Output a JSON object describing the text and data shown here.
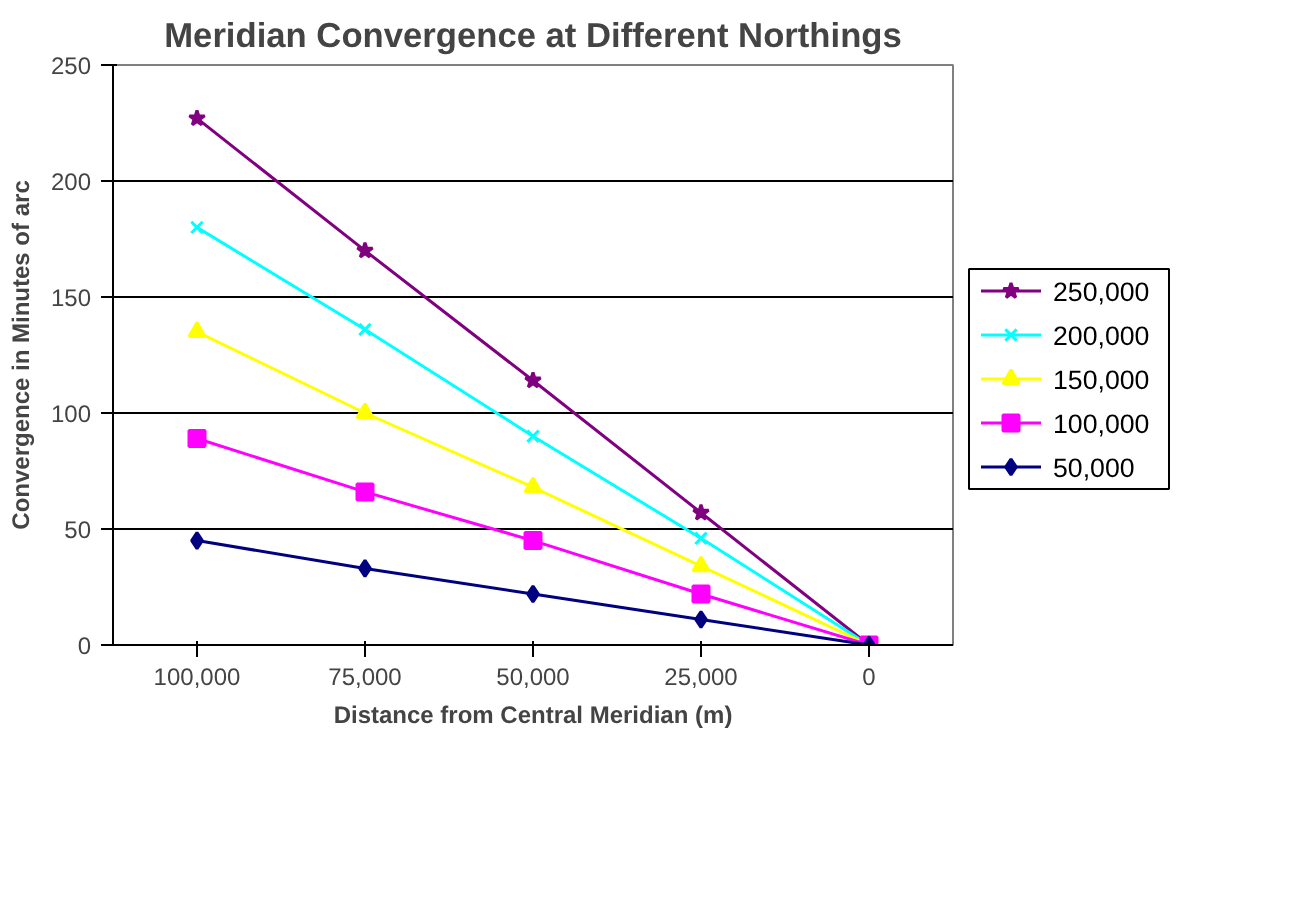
{
  "chart_data": {
    "type": "line",
    "title": "Meridian Convergence at Different Northings",
    "xlabel": "Distance from Central Meridian (m)",
    "ylabel": "Convergence in Minutes of arc",
    "categories": [
      "100,000",
      "75,000",
      "50,000",
      "25,000",
      "0"
    ],
    "series": [
      {
        "name": "250,000",
        "color": "#800080",
        "marker": "star",
        "values": [
          227,
          170,
          114,
          57,
          0
        ]
      },
      {
        "name": "200,000",
        "color": "#00ffff",
        "marker": "cross",
        "values": [
          180,
          136,
          90,
          46,
          0
        ]
      },
      {
        "name": "150,000",
        "color": "#ffff00",
        "marker": "triangle",
        "values": [
          135,
          100,
          68,
          34,
          0
        ]
      },
      {
        "name": "100,000",
        "color": "#ff00ff",
        "marker": "square",
        "values": [
          89,
          66,
          45,
          22,
          0
        ]
      },
      {
        "name": "50,000",
        "color": "#000080",
        "marker": "diamond",
        "values": [
          45,
          33,
          22,
          11,
          0
        ]
      }
    ],
    "ylim": [
      0,
      250
    ],
    "yticks": [
      0,
      50,
      100,
      150,
      200,
      250
    ],
    "grid": "y",
    "legend": "right"
  }
}
